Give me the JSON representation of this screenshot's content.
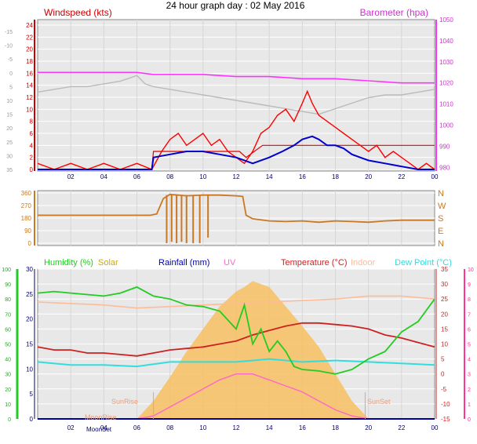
{
  "title": "24 hour graph day : 02 May 2016",
  "colors": {
    "wind": "#ff0000",
    "wind_dark": "#e00000",
    "gust": "#bbbbbb",
    "avg": "#0000cc",
    "baro": "#ff33ff",
    "dir": "#cc7722",
    "humidity": "#22cc22",
    "solar": "#ccaa00",
    "rain": "#0000aa",
    "uv": "#ff66cc",
    "temp": "#cc2222",
    "indoor": "#ffbb99",
    "dew": "#33dddd",
    "pink": "#ff3399",
    "solar_fill": "#f7c060"
  },
  "x_ticks": [
    "02",
    "04",
    "06",
    "08",
    "10",
    "12",
    "14",
    "16",
    "18",
    "20",
    "22",
    "00"
  ],
  "chart_data": [
    {
      "type": "line",
      "name": "wind-barometer",
      "title": "24 hour graph day : 02 May 2016",
      "xlabel": "",
      "ylabel": "Windspeed (kts)",
      "y2label": "Barometer (hpa)",
      "x_unit": "hours",
      "xlim": [
        0,
        24
      ],
      "ylim": [
        0,
        24
      ],
      "y_ticks": [
        0,
        2,
        4,
        6,
        8,
        10,
        12,
        14,
        16,
        18,
        20,
        22,
        24
      ],
      "y_far_ticks": [
        "-15",
        "-10",
        "-5",
        "0",
        "5",
        "10",
        "15",
        "20",
        "25",
        "30",
        "35"
      ],
      "y2lim": [
        979,
        1050
      ],
      "y2_ticks": [
        980,
        990,
        1000,
        1010,
        1020,
        1030,
        1040,
        1050
      ],
      "series": [
        {
          "name": "Barometer (hpa)",
          "axis": "y2",
          "x": [
            0,
            2,
            4,
            6,
            7,
            8,
            10,
            12,
            14,
            16,
            18,
            20,
            22,
            24
          ],
          "values": [
            1025,
            1025,
            1025,
            1025,
            1024,
            1024,
            1024,
            1023,
            1023,
            1022,
            1022,
            1021,
            1020,
            1020
          ]
        },
        {
          "name": "Windspeed (kts)",
          "axis": "y",
          "x": [
            0,
            1,
            2,
            3,
            4,
            5,
            6,
            6.9,
            7.5,
            8,
            8.5,
            9,
            9.5,
            10,
            10.5,
            11,
            11.5,
            12,
            12.5,
            13,
            13.5,
            14,
            14.5,
            15,
            15.5,
            16,
            16.3,
            16.6,
            17,
            17.5,
            18,
            18.5,
            19,
            19.5,
            20,
            20.5,
            21,
            21.5,
            22,
            22.5,
            23,
            23.5,
            24
          ],
          "values": [
            1,
            0,
            1,
            0,
            1,
            0,
            1,
            0,
            3,
            5,
            6,
            4,
            5,
            6,
            4,
            5,
            3,
            2,
            1,
            3,
            6,
            7,
            9,
            10,
            8,
            11,
            13,
            11,
            9,
            8,
            7,
            6,
            5,
            4,
            3,
            4,
            2,
            3,
            2,
            1,
            0,
            1,
            0
          ]
        },
        {
          "name": "Gust",
          "axis": "far",
          "x": [
            0,
            1,
            2,
            3,
            4,
            5,
            6,
            6.5,
            7,
            8,
            9,
            10,
            11,
            12,
            13,
            14,
            15,
            16,
            17,
            18,
            19,
            20,
            21,
            22,
            23,
            24
          ],
          "values": [
            7,
            6,
            5,
            5,
            4,
            3,
            1,
            4,
            5,
            6,
            7,
            8,
            9,
            10,
            11,
            12,
            13,
            14,
            15,
            13,
            11,
            9,
            8,
            8,
            7,
            6
          ]
        },
        {
          "name": "Average",
          "axis": "y",
          "x": [
            0,
            6.9,
            7,
            8,
            9,
            10,
            11,
            12,
            13,
            14,
            14.8,
            15.5,
            16,
            16.6,
            17,
            17.5,
            18,
            18.5,
            19,
            19.5,
            20,
            21,
            22,
            23,
            24
          ],
          "values": [
            0,
            0,
            2,
            2.5,
            3,
            3,
            2.5,
            2,
            1,
            2,
            3,
            4,
            5,
            5.5,
            5,
            4,
            4,
            3.5,
            2.5,
            2,
            1.5,
            1,
            0.5,
            0,
            0
          ]
        },
        {
          "name": "Wind step",
          "axis": "y",
          "x": [
            0,
            6.9,
            7,
            12.2,
            12.6,
            13.6,
            24
          ],
          "values": [
            0,
            0,
            3,
            3,
            2,
            4,
            4
          ]
        }
      ]
    },
    {
      "type": "line",
      "name": "wind-direction",
      "xlabel": "",
      "ylabel": "",
      "ylim": [
        0,
        360
      ],
      "y_ticks": [
        0,
        90,
        180,
        270,
        360
      ],
      "y2_ticks": [
        "N",
        "E",
        "S",
        "W",
        "N"
      ],
      "series": [
        {
          "name": "Direction",
          "x": [
            0,
            6.8,
            7.2,
            7.6,
            8,
            9,
            10,
            11,
            12,
            12.4,
            12.6,
            13,
            14,
            15,
            16,
            17,
            18,
            19,
            20,
            21,
            22,
            23,
            24
          ],
          "values": [
            200,
            200,
            210,
            320,
            350,
            340,
            345,
            345,
            340,
            335,
            200,
            175,
            160,
            155,
            160,
            150,
            160,
            155,
            150,
            160,
            165,
            165,
            165
          ]
        },
        {
          "name": "Direction spikes",
          "x": [
            7.8,
            8.1,
            8.4,
            8.7,
            9.0,
            9.4,
            9.8,
            10.3
          ],
          "values": [
            0,
            10,
            0,
            10,
            0,
            0,
            0,
            40
          ]
        }
      ]
    },
    {
      "type": "line",
      "name": "climate",
      "xlabel": "",
      "ylabel": "Humidity (%)",
      "ylim": [
        0,
        100
      ],
      "y_ticks": [
        0,
        10,
        20,
        30,
        40,
        50,
        60,
        70,
        80,
        90,
        100
      ],
      "y_inner_ticks": [
        0,
        5,
        10,
        15,
        20,
        25,
        30
      ],
      "y2lim": [
        -15,
        35
      ],
      "y2_ticks": [
        -15,
        -10,
        -5,
        0,
        5,
        10,
        15,
        20,
        25,
        30,
        35
      ],
      "y3_ticks": [
        0,
        1,
        2,
        3,
        4,
        5,
        6,
        7,
        8,
        9,
        10
      ],
      "legend": [
        "Humidity (%)",
        "Solar",
        "Rainfall (mm)",
        "UV",
        "Temperature (°C)",
        "Indoor",
        "Dew Point (°C)"
      ],
      "annotations": [
        "SunRise",
        "SunSet",
        "MoonRise",
        "MoonSet"
      ],
      "series": [
        {
          "name": "Humidity (%)",
          "axis": "y",
          "x": [
            0,
            1,
            2,
            3,
            4,
            5,
            6,
            7,
            8,
            9,
            10,
            11,
            12,
            12.5,
            13,
            13.5,
            14,
            14.5,
            15,
            15.5,
            16,
            17,
            18,
            19,
            20,
            21,
            22,
            23,
            24
          ],
          "values": [
            84,
            85,
            84,
            83,
            82,
            84,
            88,
            82,
            80,
            76,
            75,
            72,
            60,
            76,
            50,
            60,
            45,
            52,
            45,
            35,
            33,
            32,
            30,
            33,
            40,
            45,
            58,
            65,
            80
          ]
        },
        {
          "name": "Temperature (°C)",
          "axis": "y2",
          "x": [
            0,
            1,
            2,
            3,
            4,
            5,
            6,
            7,
            8,
            9,
            10,
            11,
            12,
            13,
            14,
            15,
            16,
            17,
            18,
            19,
            20,
            21,
            22,
            23,
            24
          ],
          "values": [
            9,
            8,
            8,
            7,
            7,
            6.5,
            6,
            7,
            8,
            8.5,
            9,
            10,
            11,
            13,
            14.5,
            16,
            17,
            17,
            16.5,
            16,
            15,
            13,
            12,
            10.5,
            9
          ]
        },
        {
          "name": "Indoor",
          "axis": "y2",
          "x": [
            0,
            2,
            4,
            6,
            8,
            10,
            12,
            14,
            16,
            18,
            20,
            22,
            24
          ],
          "values": [
            24,
            23.5,
            23,
            22,
            22.5,
            23,
            23.5,
            24,
            24.5,
            25,
            26,
            26,
            25
          ]
        },
        {
          "name": "Dew Point (°C)",
          "axis": "y2",
          "x": [
            0,
            2,
            4,
            6,
            8,
            10,
            12,
            14,
            16,
            18,
            20,
            22,
            24
          ],
          "values": [
            4,
            3,
            3,
            2.5,
            4,
            4,
            4,
            5,
            4,
            4.5,
            4,
            3.5,
            3
          ]
        },
        {
          "name": "Rainfall (mm)",
          "axis": "y",
          "x": [
            0,
            24
          ],
          "values": [
            0,
            0
          ]
        },
        {
          "name": "UV",
          "axis": "y",
          "x": [
            0,
            6,
            7,
            8,
            9,
            10,
            11,
            12,
            13,
            14,
            15,
            16,
            17,
            18,
            19,
            20,
            24
          ],
          "values": [
            0,
            0,
            2,
            8,
            14,
            20,
            26,
            30,
            30,
            26,
            22,
            18,
            12,
            6,
            2,
            0,
            0
          ]
        },
        {
          "name": "Solar",
          "axis": "y",
          "x": [
            0,
            6,
            7,
            8,
            9,
            10,
            11,
            12,
            12.5,
            13,
            13.5,
            14,
            15,
            16,
            17,
            18,
            19,
            20,
            24
          ],
          "values": [
            0,
            0,
            12,
            28,
            45,
            60,
            75,
            85,
            88,
            92,
            90,
            88,
            75,
            62,
            48,
            30,
            12,
            0,
            0
          ]
        }
      ]
    }
  ]
}
